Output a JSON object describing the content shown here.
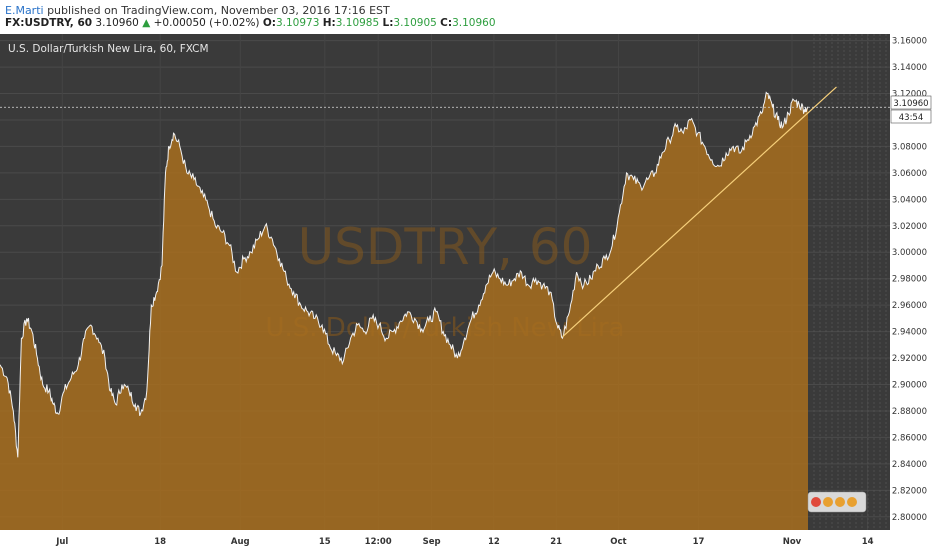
{
  "header": {
    "author": "E.Marti",
    "published": "published on TradingView.com, November 03, 2016 17:16 EST",
    "symbol": "FX:USDTRY, 60",
    "last": "3.10960",
    "change_arrow": "▲",
    "change": "+0.00050 (+0.02%)",
    "open_label": "O:",
    "open": "3.10973",
    "high_label": "H:",
    "high": "3.10985",
    "low_label": "L:",
    "low": "3.10905",
    "close_label": "C:",
    "close": "3.10960"
  },
  "chart_data": {
    "type": "area",
    "title": "U.S. Dollar/Turkish New Lira, 60, FXCM",
    "watermark_symbol": "USDTRY, 60",
    "watermark_name": "U.S. Dollar/Turkish New Lira",
    "ylim": [
      2.79,
      3.165
    ],
    "y_ticks": [
      "3.16000",
      "3.14000",
      "3.12000",
      "3.10000",
      "3.08000",
      "3.06000",
      "3.04000",
      "3.02000",
      "3.00000",
      "2.98000",
      "2.96000",
      "2.94000",
      "2.92000",
      "2.90000",
      "2.88000",
      "2.86000",
      "2.84000",
      "2.82000",
      "2.80000"
    ],
    "x_ticks": [
      {
        "label": "Jul",
        "t": 0.07
      },
      {
        "label": "18",
        "t": 0.18
      },
      {
        "label": "Aug",
        "t": 0.27
      },
      {
        "label": "15",
        "t": 0.365
      },
      {
        "label": "12:00",
        "t": 0.425
      },
      {
        "label": "Sep",
        "t": 0.485
      },
      {
        "label": "12",
        "t": 0.555
      },
      {
        "label": "21",
        "t": 0.625
      },
      {
        "label": "Oct",
        "t": 0.695
      },
      {
        "label": "17",
        "t": 0.785
      },
      {
        "label": "Nov",
        "t": 0.89
      },
      {
        "label": "14",
        "t": 0.975
      }
    ],
    "series": [
      {
        "points": [
          [
            0.0,
            2.915
          ],
          [
            0.008,
            2.905
          ],
          [
            0.015,
            2.88
          ],
          [
            0.02,
            2.845
          ],
          [
            0.024,
            2.935
          ],
          [
            0.03,
            2.95
          ],
          [
            0.036,
            2.94
          ],
          [
            0.042,
            2.92
          ],
          [
            0.048,
            2.9
          ],
          [
            0.055,
            2.895
          ],
          [
            0.06,
            2.885
          ],
          [
            0.065,
            2.878
          ],
          [
            0.072,
            2.895
          ],
          [
            0.08,
            2.905
          ],
          [
            0.088,
            2.915
          ],
          [
            0.095,
            2.935
          ],
          [
            0.102,
            2.945
          ],
          [
            0.11,
            2.935
          ],
          [
            0.118,
            2.92
          ],
          [
            0.124,
            2.895
          ],
          [
            0.13,
            2.885
          ],
          [
            0.137,
            2.9
          ],
          [
            0.145,
            2.895
          ],
          [
            0.152,
            2.885
          ],
          [
            0.158,
            2.878
          ],
          [
            0.165,
            2.895
          ],
          [
            0.17,
            2.96
          ],
          [
            0.176,
            2.97
          ],
          [
            0.182,
            2.99
          ],
          [
            0.186,
            3.06
          ],
          [
            0.19,
            3.08
          ],
          [
            0.195,
            3.09
          ],
          [
            0.202,
            3.08
          ],
          [
            0.21,
            3.06
          ],
          [
            0.218,
            3.055
          ],
          [
            0.226,
            3.045
          ],
          [
            0.234,
            3.035
          ],
          [
            0.242,
            3.02
          ],
          [
            0.25,
            3.015
          ],
          [
            0.258,
            3.005
          ],
          [
            0.266,
            2.985
          ],
          [
            0.274,
            2.995
          ],
          [
            0.282,
            3.0
          ],
          [
            0.29,
            3.01
          ],
          [
            0.298,
            3.02
          ],
          [
            0.306,
            3.01
          ],
          [
            0.314,
            2.995
          ],
          [
            0.322,
            2.98
          ],
          [
            0.33,
            2.97
          ],
          [
            0.338,
            2.96
          ],
          [
            0.346,
            2.955
          ],
          [
            0.354,
            2.95
          ],
          [
            0.362,
            2.945
          ],
          [
            0.37,
            2.93
          ],
          [
            0.378,
            2.922
          ],
          [
            0.386,
            2.918
          ],
          [
            0.394,
            2.935
          ],
          [
            0.402,
            2.945
          ],
          [
            0.41,
            2.94
          ],
          [
            0.418,
            2.95
          ],
          [
            0.426,
            2.945
          ],
          [
            0.434,
            2.935
          ],
          [
            0.442,
            2.94
          ],
          [
            0.45,
            2.948
          ],
          [
            0.458,
            2.955
          ],
          [
            0.466,
            2.95
          ],
          [
            0.474,
            2.942
          ],
          [
            0.482,
            2.948
          ],
          [
            0.49,
            2.955
          ],
          [
            0.498,
            2.94
          ],
          [
            0.506,
            2.93
          ],
          [
            0.514,
            2.92
          ],
          [
            0.522,
            2.935
          ],
          [
            0.53,
            2.95
          ],
          [
            0.538,
            2.96
          ],
          [
            0.546,
            2.975
          ],
          [
            0.554,
            2.985
          ],
          [
            0.562,
            2.98
          ],
          [
            0.57,
            2.975
          ],
          [
            0.578,
            2.98
          ],
          [
            0.586,
            2.985
          ],
          [
            0.594,
            2.975
          ],
          [
            0.602,
            2.98
          ],
          [
            0.61,
            2.975
          ],
          [
            0.618,
            2.97
          ],
          [
            0.626,
            2.945
          ],
          [
            0.632,
            2.935
          ],
          [
            0.64,
            2.955
          ],
          [
            0.648,
            2.985
          ],
          [
            0.656,
            2.975
          ],
          [
            0.664,
            2.98
          ],
          [
            0.672,
            2.99
          ],
          [
            0.68,
            2.995
          ],
          [
            0.688,
            3.005
          ],
          [
            0.696,
            3.03
          ],
          [
            0.704,
            3.06
          ],
          [
            0.712,
            3.055
          ],
          [
            0.72,
            3.05
          ],
          [
            0.728,
            3.055
          ],
          [
            0.736,
            3.06
          ],
          [
            0.744,
            3.075
          ],
          [
            0.752,
            3.085
          ],
          [
            0.76,
            3.095
          ],
          [
            0.768,
            3.09
          ],
          [
            0.776,
            3.1
          ],
          [
            0.784,
            3.09
          ],
          [
            0.792,
            3.08
          ],
          [
            0.8,
            3.07
          ],
          [
            0.808,
            3.065
          ],
          [
            0.816,
            3.075
          ],
          [
            0.824,
            3.08
          ],
          [
            0.832,
            3.075
          ],
          [
            0.84,
            3.085
          ],
          [
            0.848,
            3.095
          ],
          [
            0.856,
            3.105
          ],
          [
            0.862,
            3.12
          ],
          [
            0.868,
            3.11
          ],
          [
            0.874,
            3.1
          ],
          [
            0.88,
            3.095
          ],
          [
            0.886,
            3.105
          ],
          [
            0.892,
            3.115
          ],
          [
            0.898,
            3.112
          ],
          [
            0.904,
            3.108
          ],
          [
            0.908,
            3.11
          ]
        ]
      }
    ],
    "last_price_label": "3.10960",
    "countdown_label": "43:54",
    "colors": {
      "background": "#3a3a3a",
      "area_fill": "#a86f1f",
      "line": "#f2f2f2",
      "trendline": "#f6cf7a",
      "axis_bg": "#ffffff",
      "axis_text": "#333333"
    }
  }
}
